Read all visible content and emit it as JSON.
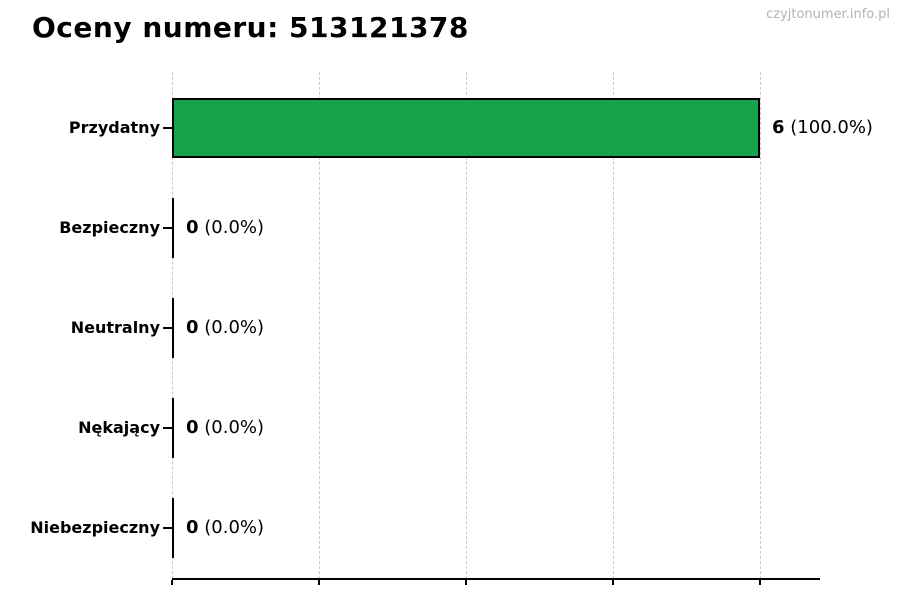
{
  "page": {
    "watermark": "czyjtonumer.info.pl"
  },
  "chart_data": {
    "type": "bar",
    "orientation": "horizontal",
    "title": "Oceny numeru: 513121378",
    "categories": [
      "Przydatny",
      "Bezpieczny",
      "Neutralny",
      "Nękający",
      "Niebezpieczny"
    ],
    "values": [
      6,
      0,
      0,
      0,
      0
    ],
    "percents": [
      100.0,
      0.0,
      0.0,
      0.0,
      0.0
    ],
    "rows": [
      {
        "label": "Przydatny",
        "count_label": "6",
        "pct_label": "(100.0%)"
      },
      {
        "label": "Bezpieczny",
        "count_label": "0",
        "pct_label": "(0.0%)"
      },
      {
        "label": "Neutralny",
        "count_label": "0",
        "pct_label": "(0.0%)"
      },
      {
        "label": "Nękający",
        "count_label": "0",
        "pct_label": "(0.0%)"
      },
      {
        "label": "Niebezpieczny",
        "count_label": "0",
        "pct_label": "(0.0%)"
      }
    ],
    "xlabel": "",
    "ylabel": "",
    "xlim": [
      0,
      6.6
    ],
    "xticks": [
      0,
      1.5,
      3,
      4.5,
      6
    ],
    "x_tick_labels_visible": false,
    "grid": "vertical-dashed",
    "legend": "none",
    "colors": {
      "bar_fill": "#18a24b",
      "bar_edge": "#000000",
      "grid": "#cccccc",
      "text": "#000000",
      "watermark": "#b3b3b3"
    }
  }
}
